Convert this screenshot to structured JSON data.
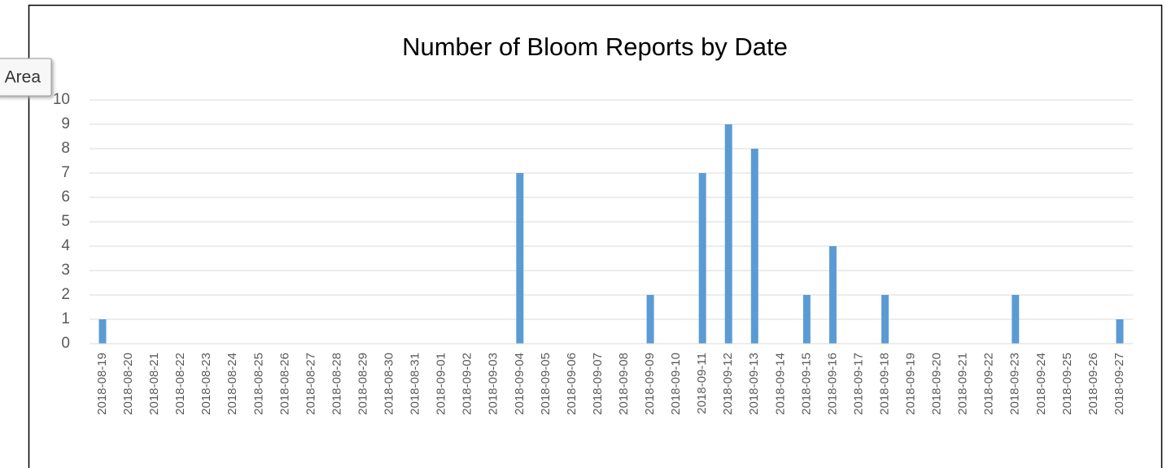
{
  "tooltip": "Area",
  "chart_data": {
    "type": "bar",
    "title": "Number of Bloom Reports by Date",
    "categories": [
      "2018-08-19",
      "2018-08-20",
      "2018-08-21",
      "2018-08-22",
      "2018-08-23",
      "2018-08-24",
      "2018-08-25",
      "2018-08-26",
      "2018-08-27",
      "2018-08-28",
      "2018-08-29",
      "2018-08-30",
      "2018-08-31",
      "2018-09-01",
      "2018-09-02",
      "2018-09-03",
      "2018-09-04",
      "2018-09-05",
      "2018-09-06",
      "2018-09-07",
      "2018-09-08",
      "2018-09-09",
      "2018-09-10",
      "2018-09-11",
      "2018-09-12",
      "2018-09-13",
      "2018-09-14",
      "2018-09-15",
      "2018-09-16",
      "2018-09-17",
      "2018-09-18",
      "2018-09-19",
      "2018-09-20",
      "2018-09-21",
      "2018-09-22",
      "2018-09-23",
      "2018-09-24",
      "2018-09-25",
      "2018-09-26",
      "2018-09-27"
    ],
    "values": [
      1,
      0,
      0,
      0,
      0,
      0,
      0,
      0,
      0,
      0,
      0,
      0,
      0,
      0,
      0,
      0,
      7,
      0,
      0,
      0,
      0,
      2,
      0,
      7,
      9,
      8,
      0,
      2,
      4,
      0,
      2,
      0,
      0,
      0,
      0,
      2,
      0,
      0,
      0,
      1
    ],
    "color": "#5b9bd5",
    "ylim": [
      0,
      10
    ],
    "yticks": [
      0,
      1,
      2,
      3,
      4,
      5,
      6,
      7,
      8,
      9,
      10
    ],
    "grid": true
  }
}
